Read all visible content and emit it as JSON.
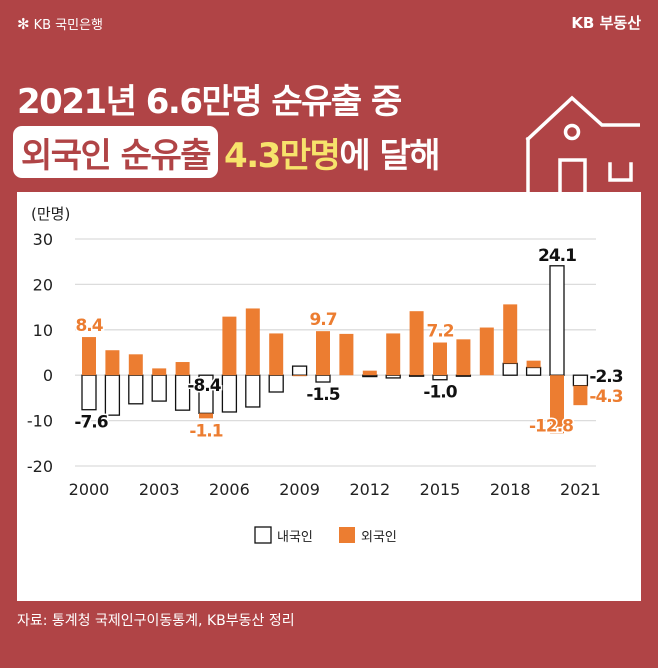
{
  "header": {
    "bank_logo_symbol": "✻",
    "bank_name": "KB 국민은행",
    "brand_right": "KB 부동산"
  },
  "title": {
    "line1": "2021년 6.6만명 순유출 중",
    "line2_highlight": "외국인 순유출",
    "line2_yellow": "4.3만명",
    "line2_rest": "에 달해"
  },
  "icons": {
    "house": "house-icon"
  },
  "source": "자료: 통계청 국제인구이동통계, KB부동산 정리",
  "colors": {
    "background": "#B04446",
    "foreign": "#EC7D31",
    "domestic_fill": "#FFFFFF",
    "domestic_stroke": "#111111",
    "title_yellow": "#F7E36B"
  },
  "chart_data": {
    "type": "bar",
    "stacked": true,
    "title": "",
    "ylabel": "(만명)",
    "xlabel": "",
    "ylim": [
      -20,
      30
    ],
    "yticks": [
      30,
      20,
      10,
      0,
      -10,
      -20
    ],
    "grid": true,
    "categories": [
      2000,
      2001,
      2002,
      2003,
      2004,
      2005,
      2006,
      2007,
      2008,
      2009,
      2010,
      2011,
      2012,
      2013,
      2014,
      2015,
      2016,
      2017,
      2018,
      2019,
      2020,
      2021
    ],
    "xtick_labels": [
      "2000",
      "2003",
      "2006",
      "2009",
      "2012",
      "2015",
      "2018",
      "2021"
    ],
    "legend_position": "bottom-center",
    "series": [
      {
        "name": "내국인",
        "values": [
          -7.6,
          -8.8,
          -6.3,
          -5.7,
          -7.7,
          -8.4,
          -8.1,
          -7.0,
          -3.7,
          2.0,
          -1.5,
          0.0,
          -0.3,
          -0.6,
          -0.1,
          -1.0,
          -0.2,
          0.0,
          2.6,
          1.7,
          24.1,
          -2.3
        ]
      },
      {
        "name": "외국인",
        "values": [
          8.4,
          5.5,
          4.6,
          1.5,
          2.9,
          -1.1,
          12.9,
          14.7,
          9.2,
          -0.2,
          9.7,
          9.1,
          1.0,
          9.2,
          14.1,
          7.2,
          7.9,
          10.5,
          13.0,
          1.5,
          -12.8,
          -4.3
        ]
      }
    ],
    "annotations": [
      {
        "year": 2000,
        "series": "외국인",
        "label": "8.4"
      },
      {
        "year": 2000,
        "series": "내국인",
        "label": "-7.6"
      },
      {
        "year": 2005,
        "series": "내국인",
        "label": "-8.4"
      },
      {
        "year": 2005,
        "series": "외국인",
        "label": "-1.1"
      },
      {
        "year": 2010,
        "series": "외국인",
        "label": "9.7"
      },
      {
        "year": 2010,
        "series": "내국인",
        "label": "-1.5"
      },
      {
        "year": 2015,
        "series": "외국인",
        "label": "7.2"
      },
      {
        "year": 2015,
        "series": "내국인",
        "label": "-1.0"
      },
      {
        "year": 2020,
        "series": "내국인",
        "label": "24.1"
      },
      {
        "year": 2020,
        "series": "외국인",
        "label": "-12.8"
      },
      {
        "year": 2021,
        "series": "내국인",
        "label": "-2.3"
      },
      {
        "year": 2021,
        "series": "외국인",
        "label": "-4.3"
      }
    ]
  }
}
